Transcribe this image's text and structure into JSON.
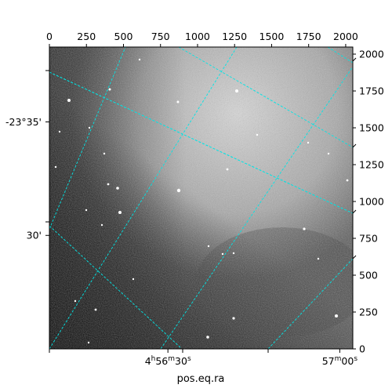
{
  "chart_data": {
    "type": "image",
    "xlabel": "pos.eq.ra",
    "ylabel": "",
    "pixel_x_ticks": [
      0,
      250,
      500,
      750,
      1000,
      1250,
      1500,
      1750,
      2000
    ],
    "pixel_y_ticks": [
      0,
      250,
      500,
      750,
      1000,
      1250,
      1500,
      1750,
      2000
    ],
    "pixel_xlim": [
      0,
      2048
    ],
    "pixel_ylim": [
      0,
      2048
    ],
    "ra_ticks": [
      {
        "label_main": "4",
        "sup1": "h",
        "mid": "56",
        "sup2": "m",
        "tail": "30",
        "sup3": "s",
        "px": 800
      },
      {
        "label_main": "57",
        "sup1": "m",
        "mid": "00",
        "sup2": "s",
        "tail": "",
        "sup3": "",
        "px": 1960
      }
    ],
    "dec_ticks": [
      {
        "label": "-23°35'",
        "py": 1540
      },
      {
        "label": "30'",
        "py": 770
      }
    ],
    "grid": true,
    "grid_color": "#00e5e5",
    "colormap": "gray"
  }
}
